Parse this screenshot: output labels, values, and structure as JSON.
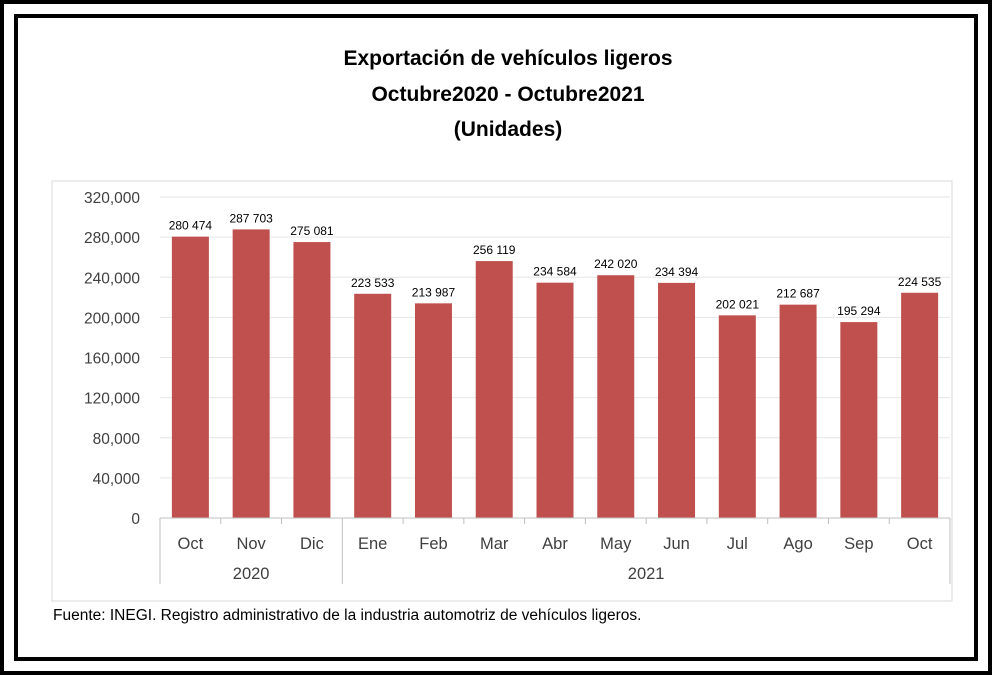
{
  "title_lines": [
    "Exportación de vehículos ligeros",
    "Octubre2020 - Octubre2021",
    "(Unidades)"
  ],
  "source": "Fuente: INEGI. Registro administrativo de la industria automotriz de vehículos ligeros.",
  "colors": {
    "bar": "#C0504D",
    "grid": "#e6e6e6",
    "axis": "#bfbfbf"
  },
  "chart_data": {
    "type": "bar",
    "title": "Exportación de vehículos ligeros Octubre2020 - Octubre2021 (Unidades)",
    "categories": [
      "Oct",
      "Nov",
      "Dic",
      "Ene",
      "Feb",
      "Mar",
      "Abr",
      "May",
      "Jun",
      "Jul",
      "Ago",
      "Sep",
      "Oct"
    ],
    "year_groups": [
      {
        "label": "2020",
        "from": 0,
        "to": 2
      },
      {
        "label": "2021",
        "from": 3,
        "to": 12
      }
    ],
    "values": [
      280474,
      287703,
      275081,
      223533,
      213987,
      256119,
      234584,
      242020,
      234394,
      202021,
      212687,
      195294,
      224535
    ],
    "data_labels": [
      "280 474",
      "287 703",
      "275 081",
      "223 533",
      "213 987",
      "256 119",
      "234 584",
      "242 020",
      "234 394",
      "202 021",
      "212 687",
      "195 294",
      "224 535"
    ],
    "ylim": [
      0,
      320000
    ],
    "yticks": [
      0,
      40000,
      80000,
      120000,
      160000,
      200000,
      240000,
      280000,
      320000
    ],
    "ytick_labels": [
      "0",
      "40,000",
      "80,000",
      "120,000",
      "160,000",
      "200,000",
      "240,000",
      "280,000",
      "320,000"
    ],
    "grid": true,
    "xlabel": "",
    "ylabel": ""
  }
}
